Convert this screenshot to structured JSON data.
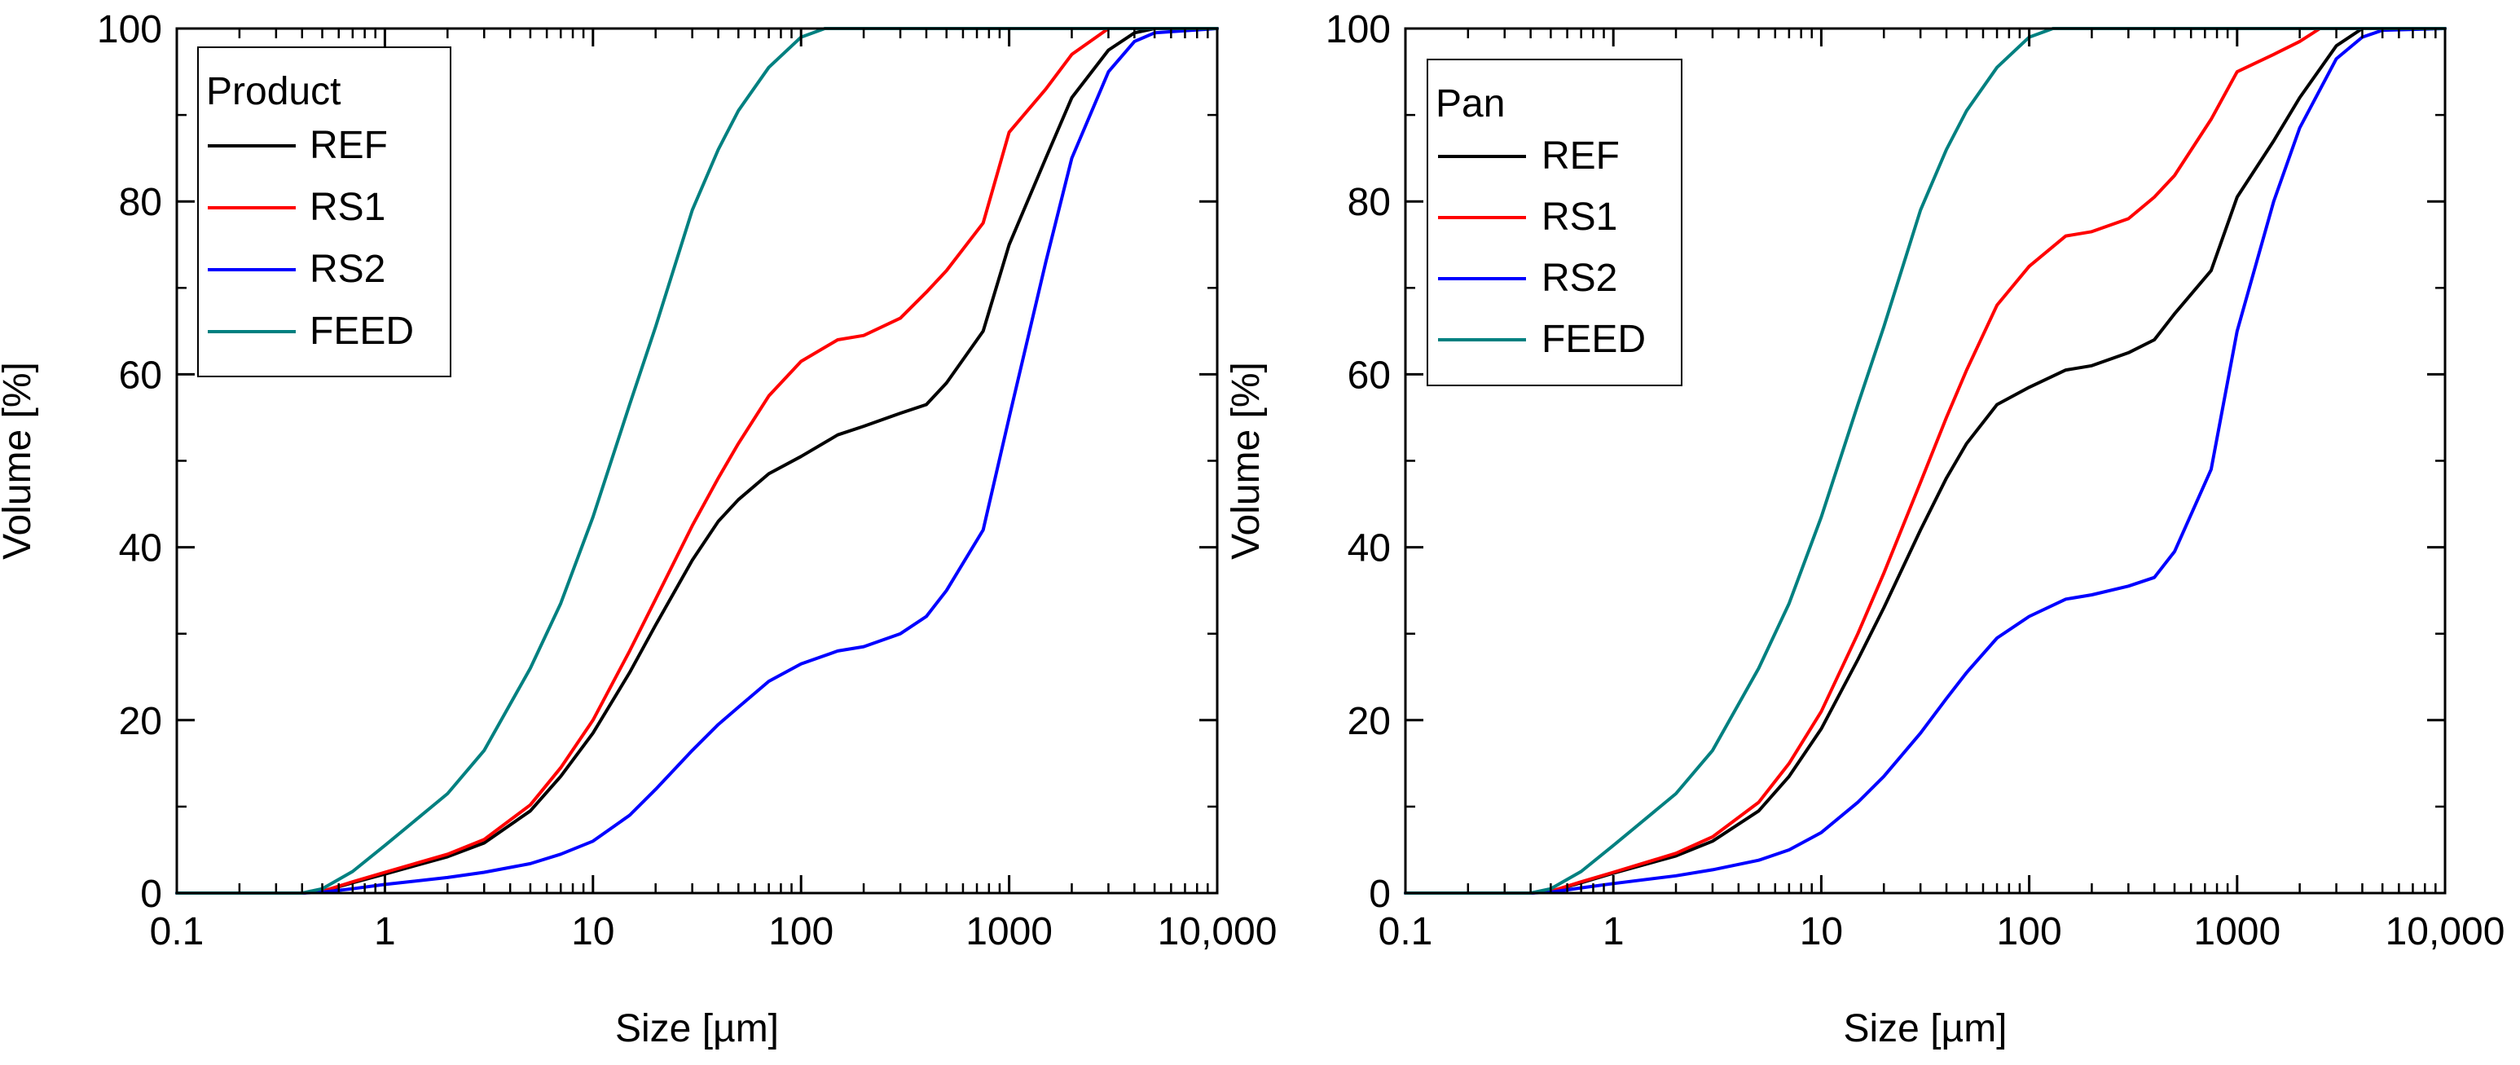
{
  "colors": {
    "REF": "#000000",
    "RS1": "#ff0000",
    "RS2": "#0000ff",
    "FEED": "#008080",
    "axis": "#000000"
  },
  "chart_data": [
    {
      "type": "line",
      "legend_title": "Product",
      "legend_position": "top-left",
      "xlabel": "Size [µm]",
      "ylabel": "Volume [%]",
      "xscale": "log",
      "xlim": [
        0.1,
        10000
      ],
      "ylim": [
        0,
        100
      ],
      "xticks": [
        0.1,
        1,
        10,
        100,
        1000,
        10000
      ],
      "xtick_labels": [
        "0.1",
        "1",
        "10",
        "100",
        "1000",
        "10,000"
      ],
      "yticks": [
        0,
        20,
        40,
        60,
        80,
        100
      ],
      "ytick_labels": [
        "0",
        "20",
        "40",
        "60",
        "80",
        "100"
      ],
      "series": [
        {
          "name": "REF",
          "x": [
            0.1,
            0.4,
            0.5,
            0.7,
            1,
            2,
            3,
            5,
            7,
            10,
            15,
            20,
            30,
            40,
            50,
            70,
            100,
            150,
            200,
            300,
            400,
            500,
            750,
            1000,
            1500,
            2000,
            3000,
            4000,
            5000,
            10000
          ],
          "y": [
            0,
            0,
            0.2,
            1.2,
            2.2,
            4.2,
            5.8,
            9.5,
            13.5,
            18.5,
            25.5,
            31,
            38.5,
            43,
            45.5,
            48.5,
            50.5,
            53,
            54,
            55.5,
            56.5,
            59,
            65,
            75,
            85,
            92,
            97.5,
            99.5,
            100,
            100
          ]
        },
        {
          "name": "RS1",
          "x": [
            0.1,
            0.4,
            0.5,
            0.7,
            1,
            2,
            3,
            5,
            7,
            10,
            15,
            20,
            30,
            40,
            50,
            70,
            100,
            150,
            200,
            300,
            400,
            500,
            750,
            1000,
            1500,
            2000,
            3000,
            4000,
            10000
          ],
          "y": [
            0,
            0,
            0.2,
            1.3,
            2.4,
            4.5,
            6.2,
            10.2,
            14.5,
            20,
            28,
            34,
            42.5,
            48,
            52,
            57.5,
            61.5,
            64,
            64.5,
            66.5,
            69.5,
            72,
            77.5,
            88,
            93,
            97,
            100,
            100,
            100
          ]
        },
        {
          "name": "RS2",
          "x": [
            0.1,
            0.4,
            0.5,
            0.7,
            1,
            2,
            3,
            5,
            7,
            10,
            15,
            20,
            30,
            40,
            50,
            70,
            100,
            150,
            200,
            300,
            400,
            500,
            750,
            1000,
            1500,
            2000,
            3000,
            4000,
            5000,
            10000
          ],
          "y": [
            0,
            0,
            0.1,
            0.5,
            1,
            1.8,
            2.4,
            3.4,
            4.5,
            6,
            9,
            12,
            16.5,
            19.5,
            21.5,
            24.5,
            26.5,
            28,
            28.5,
            30,
            32,
            35,
            42,
            55,
            73,
            85,
            95,
            98.5,
            99.5,
            100
          ]
        },
        {
          "name": "FEED",
          "x": [
            0.1,
            0.4,
            0.5,
            0.7,
            1,
            2,
            3,
            5,
            7,
            10,
            15,
            20,
            30,
            40,
            50,
            70,
            100,
            130,
            10000
          ],
          "y": [
            0,
            0,
            0.5,
            2.5,
            5.5,
            11.5,
            16.5,
            26,
            33.5,
            43.5,
            56.5,
            65.5,
            79,
            86,
            90.5,
            95.5,
            99,
            100,
            100
          ]
        }
      ]
    },
    {
      "type": "line",
      "legend_title": "Pan",
      "legend_position": "top-left",
      "xlabel": "Size [µm]",
      "ylabel": "Volume [%]",
      "xscale": "log",
      "xlim": [
        0.1,
        10000
      ],
      "ylim": [
        0,
        100
      ],
      "xticks": [
        0.1,
        1,
        10,
        100,
        1000,
        10000
      ],
      "xtick_labels": [
        "0.1",
        "1",
        "10",
        "100",
        "1000",
        "10,000"
      ],
      "yticks": [
        0,
        20,
        40,
        60,
        80,
        100
      ],
      "ytick_labels": [
        "0",
        "20",
        "40",
        "60",
        "80",
        "100"
      ],
      "series": [
        {
          "name": "REF",
          "x": [
            0.1,
            0.4,
            0.5,
            0.7,
            1,
            2,
            3,
            5,
            7,
            10,
            15,
            20,
            30,
            40,
            50,
            70,
            100,
            150,
            200,
            300,
            400,
            500,
            750,
            1000,
            1500,
            2000,
            3000,
            4000,
            10000
          ],
          "y": [
            0,
            0,
            0.2,
            1.2,
            2.3,
            4.3,
            6,
            9.5,
            13.5,
            19,
            27,
            33,
            42,
            48,
            52,
            56.5,
            58.5,
            60.5,
            61,
            62.5,
            64,
            67,
            72,
            80.5,
            87,
            92,
            98,
            100,
            100
          ]
        },
        {
          "name": "RS1",
          "x": [
            0.1,
            0.4,
            0.5,
            0.7,
            1,
            2,
            3,
            5,
            7,
            10,
            15,
            20,
            30,
            40,
            50,
            70,
            100,
            150,
            200,
            300,
            400,
            500,
            750,
            1000,
            1500,
            2000,
            2500,
            10000
          ],
          "y": [
            0,
            0,
            0.2,
            1.3,
            2.4,
            4.6,
            6.5,
            10.5,
            15,
            21,
            30,
            37,
            47.5,
            55,
            60.5,
            68,
            72.5,
            76,
            76.5,
            78,
            80.5,
            83,
            89.5,
            95,
            97,
            98.5,
            100,
            100
          ]
        },
        {
          "name": "RS2",
          "x": [
            0.1,
            0.4,
            0.5,
            0.7,
            1,
            2,
            3,
            5,
            7,
            10,
            15,
            20,
            30,
            40,
            50,
            70,
            100,
            150,
            200,
            300,
            400,
            500,
            750,
            1000,
            1500,
            2000,
            3000,
            4000,
            5000,
            10000
          ],
          "y": [
            0,
            0,
            0.1,
            0.6,
            1.1,
            2,
            2.7,
            3.8,
            5,
            7,
            10.5,
            13.5,
            18.5,
            22.5,
            25.5,
            29.5,
            32,
            34,
            34.5,
            35.5,
            36.5,
            39.5,
            49,
            65,
            80,
            88.5,
            96.5,
            99,
            99.8,
            100
          ]
        },
        {
          "name": "FEED",
          "x": [
            0.1,
            0.4,
            0.5,
            0.7,
            1,
            2,
            3,
            5,
            7,
            10,
            15,
            20,
            30,
            40,
            50,
            70,
            100,
            130,
            10000
          ],
          "y": [
            0,
            0,
            0.5,
            2.5,
            5.5,
            11.5,
            16.5,
            26,
            33.5,
            43.5,
            56.5,
            65.5,
            79,
            86,
            90.5,
            95.5,
            99,
            100,
            100
          ]
        }
      ]
    }
  ]
}
